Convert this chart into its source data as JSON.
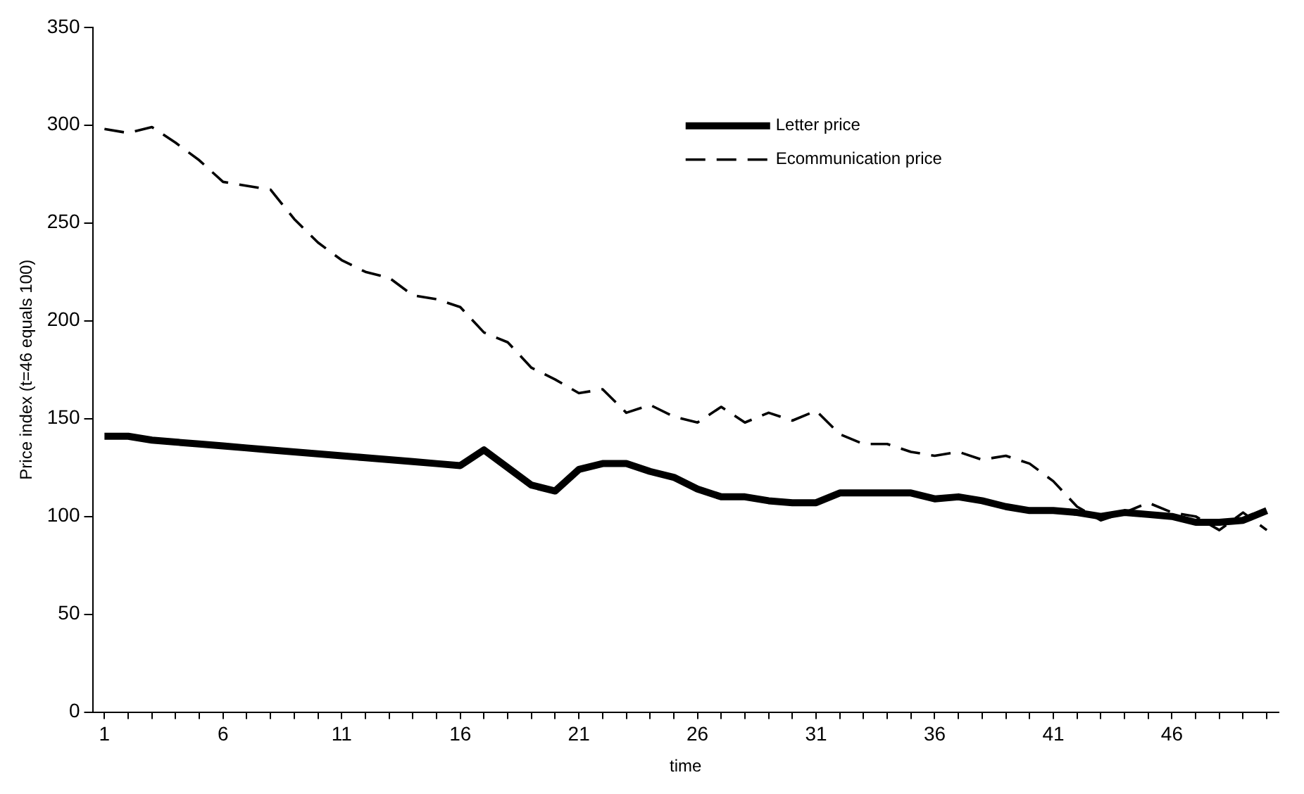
{
  "chart_data": {
    "type": "line",
    "xlabel": "time",
    "ylabel": "Price index (t=46 equals 100)",
    "x": [
      1,
      2,
      3,
      4,
      5,
      6,
      7,
      8,
      9,
      10,
      11,
      12,
      13,
      14,
      15,
      16,
      17,
      18,
      19,
      20,
      21,
      22,
      23,
      24,
      25,
      26,
      27,
      28,
      29,
      30,
      31,
      32,
      33,
      34,
      35,
      36,
      37,
      38,
      39,
      40,
      41,
      42,
      43,
      44,
      45,
      46,
      47,
      48,
      49,
      50
    ],
    "xlim": [
      0.5,
      50.5
    ],
    "xticks": [
      1,
      {
        "value": 2,
        "label": null
      },
      {
        "value": 3,
        "label": null
      },
      {
        "value": 4,
        "label": null
      },
      {
        "value": 5,
        "label": null
      },
      6,
      {
        "value": 7,
        "label": null
      },
      {
        "value": 8,
        "label": null
      },
      {
        "value": 9,
        "label": null
      },
      {
        "value": 10,
        "label": null
      },
      11,
      {
        "value": 12,
        "label": null
      },
      {
        "value": 13,
        "label": null
      },
      {
        "value": 14,
        "label": null
      },
      {
        "value": 15,
        "label": null
      },
      16,
      {
        "value": 17,
        "label": null
      },
      {
        "value": 18,
        "label": null
      },
      {
        "value": 19,
        "label": null
      },
      {
        "value": 20,
        "label": null
      },
      21,
      {
        "value": 22,
        "label": null
      },
      {
        "value": 23,
        "label": null
      },
      {
        "value": 24,
        "label": null
      },
      {
        "value": 25,
        "label": null
      },
      26,
      {
        "value": 27,
        "label": null
      },
      {
        "value": 28,
        "label": null
      },
      {
        "value": 29,
        "label": null
      },
      {
        "value": 30,
        "label": null
      },
      31,
      {
        "value": 32,
        "label": null
      },
      {
        "value": 33,
        "label": null
      },
      {
        "value": 34,
        "label": null
      },
      {
        "value": 35,
        "label": null
      },
      36,
      {
        "value": 37,
        "label": null
      },
      {
        "value": 38,
        "label": null
      },
      {
        "value": 39,
        "label": null
      },
      {
        "value": 40,
        "label": null
      },
      41,
      {
        "value": 42,
        "label": null
      },
      {
        "value": 43,
        "label": null
      },
      {
        "value": 44,
        "label": null
      },
      {
        "value": 45,
        "label": null
      },
      46,
      {
        "value": 47,
        "label": null
      },
      {
        "value": 48,
        "label": null
      },
      {
        "value": 49,
        "label": null
      },
      {
        "value": 50,
        "label": null
      }
    ],
    "series": [
      {
        "name": "Letter price",
        "color": "#000000",
        "line_style": "solid",
        "values": [
          141,
          141,
          139,
          138,
          137,
          136,
          135,
          134,
          133,
          132,
          131,
          130,
          129,
          128,
          127,
          126,
          134,
          125,
          116,
          113,
          124,
          127,
          127,
          123,
          120,
          114,
          110,
          110,
          108,
          107,
          107,
          112,
          112,
          112,
          112,
          109,
          110,
          108,
          105,
          103,
          103,
          102,
          100,
          102,
          101,
          100,
          97,
          97,
          98,
          103
        ]
      },
      {
        "name": "Ecommunication price",
        "color": "#000000",
        "line_style": "dashed",
        "values": [
          298,
          296,
          299,
          291,
          282,
          271,
          269,
          267,
          252,
          240,
          231,
          225,
          222,
          213,
          211,
          207,
          194,
          189,
          176,
          170,
          163,
          165,
          153,
          157,
          151,
          148,
          156,
          148,
          153,
          149,
          154,
          142,
          137,
          137,
          133,
          131,
          133,
          129,
          131,
          127,
          118,
          105,
          98,
          102,
          107,
          102,
          100,
          93,
          102,
          93
        ]
      }
    ],
    "ylim": [
      0,
      350
    ],
    "yticks": [
      0,
      50,
      100,
      150,
      200,
      250,
      300,
      350
    ],
    "grid": false,
    "legend": "top right",
    "marker": "none"
  }
}
